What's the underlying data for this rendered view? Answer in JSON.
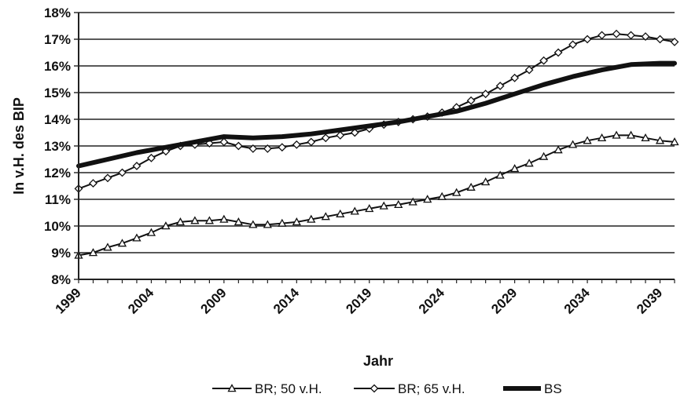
{
  "chart_data": {
    "type": "line",
    "xlabel": "Jahr",
    "ylabel": "In v.H. des BIP",
    "x_range": [
      1999,
      2040
    ],
    "ylim": [
      8,
      18
    ],
    "y_ticks": [
      "8%",
      "9%",
      "10%",
      "11%",
      "12%",
      "13%",
      "14%",
      "15%",
      "16%",
      "17%",
      "18%"
    ],
    "x_ticks": [
      "1999",
      "2004",
      "2009",
      "2014",
      "2019",
      "2024",
      "2029",
      "2034",
      "2039"
    ],
    "grid": "horizontal",
    "legend_position": "bottom",
    "series": [
      {
        "name": "BR; 50 v.H.",
        "marker": "triangle",
        "x": [
          1999,
          2000,
          2001,
          2002,
          2003,
          2004,
          2005,
          2006,
          2007,
          2008,
          2009,
          2010,
          2011,
          2012,
          2013,
          2014,
          2015,
          2016,
          2017,
          2018,
          2019,
          2020,
          2021,
          2022,
          2023,
          2024,
          2025,
          2026,
          2027,
          2028,
          2029,
          2030,
          2031,
          2032,
          2033,
          2034,
          2035,
          2036,
          2037,
          2038,
          2039,
          2040
        ],
        "values": [
          8.9,
          9.0,
          9.2,
          9.35,
          9.55,
          9.75,
          10.0,
          10.15,
          10.2,
          10.2,
          10.25,
          10.15,
          10.05,
          10.05,
          10.1,
          10.15,
          10.25,
          10.35,
          10.45,
          10.55,
          10.65,
          10.75,
          10.8,
          10.9,
          11.0,
          11.1,
          11.25,
          11.45,
          11.65,
          11.9,
          12.15,
          12.35,
          12.6,
          12.85,
          13.05,
          13.2,
          13.3,
          13.4,
          13.4,
          13.3,
          13.2,
          13.15
        ]
      },
      {
        "name": "BR; 65 v.H.",
        "marker": "diamond",
        "x": [
          1999,
          2000,
          2001,
          2002,
          2003,
          2004,
          2005,
          2006,
          2007,
          2008,
          2009,
          2010,
          2011,
          2012,
          2013,
          2014,
          2015,
          2016,
          2017,
          2018,
          2019,
          2020,
          2021,
          2022,
          2023,
          2024,
          2025,
          2026,
          2027,
          2028,
          2029,
          2030,
          2031,
          2032,
          2033,
          2034,
          2035,
          2036,
          2037,
          2038,
          2039,
          2040
        ],
        "values": [
          11.4,
          11.6,
          11.8,
          12.0,
          12.25,
          12.55,
          12.8,
          13.0,
          13.05,
          13.1,
          13.15,
          13.0,
          12.9,
          12.9,
          12.95,
          13.05,
          13.15,
          13.3,
          13.4,
          13.5,
          13.65,
          13.8,
          13.9,
          14.0,
          14.1,
          14.25,
          14.45,
          14.7,
          14.95,
          15.25,
          15.55,
          15.85,
          16.2,
          16.5,
          16.8,
          17.0,
          17.15,
          17.2,
          17.15,
          17.1,
          17.0,
          16.9
        ]
      },
      {
        "name": "BS",
        "marker": "none",
        "x": [
          1999,
          2001,
          2003,
          2005,
          2007,
          2009,
          2011,
          2013,
          2015,
          2017,
          2019,
          2021,
          2023,
          2025,
          2027,
          2029,
          2031,
          2033,
          2035,
          2037,
          2039,
          2040
        ],
        "values": [
          12.25,
          12.5,
          12.75,
          12.95,
          13.15,
          13.35,
          13.3,
          13.35,
          13.45,
          13.6,
          13.75,
          13.9,
          14.1,
          14.3,
          14.6,
          14.95,
          15.3,
          15.6,
          15.85,
          16.05,
          16.1,
          16.1
        ]
      }
    ]
  }
}
